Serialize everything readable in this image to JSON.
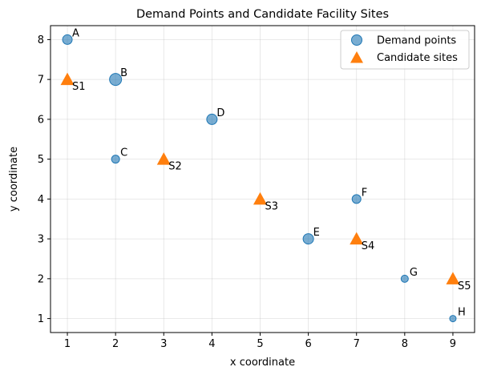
{
  "chart_data": {
    "type": "scatter",
    "title": "Demand Points and Candidate Facility Sites",
    "xlabel": "x coordinate",
    "ylabel": "y coordinate",
    "xlim": [
      0.65,
      9.45
    ],
    "ylim": [
      0.65,
      8.35
    ],
    "xticks": [
      1,
      2,
      3,
      4,
      5,
      6,
      7,
      8,
      9
    ],
    "yticks": [
      1,
      2,
      3,
      4,
      5,
      6,
      7,
      8
    ],
    "grid": true,
    "legend_position": "top-right",
    "series": [
      {
        "name": "Demand points",
        "marker": "circle",
        "color": "#1f77b4",
        "points": [
          {
            "label": "A",
            "x": 1,
            "y": 8,
            "size": 6
          },
          {
            "label": "B",
            "x": 2,
            "y": 7,
            "size": 7.5
          },
          {
            "label": "C",
            "x": 2,
            "y": 5,
            "size": 5
          },
          {
            "label": "D",
            "x": 4,
            "y": 6,
            "size": 6.5
          },
          {
            "label": "E",
            "x": 6,
            "y": 3,
            "size": 6.5
          },
          {
            "label": "F",
            "x": 7,
            "y": 4,
            "size": 5.5
          },
          {
            "label": "G",
            "x": 8,
            "y": 2,
            "size": 4.5
          },
          {
            "label": "H",
            "x": 9,
            "y": 1,
            "size": 4
          }
        ]
      },
      {
        "name": "Candidate sites",
        "marker": "triangle",
        "color": "#ff7f0e",
        "points": [
          {
            "label": "S1",
            "x": 1,
            "y": 7
          },
          {
            "label": "S2",
            "x": 3,
            "y": 5
          },
          {
            "label": "S3",
            "x": 5,
            "y": 4
          },
          {
            "label": "S4",
            "x": 7,
            "y": 3
          },
          {
            "label": "S5",
            "x": 9,
            "y": 2
          }
        ]
      }
    ]
  }
}
